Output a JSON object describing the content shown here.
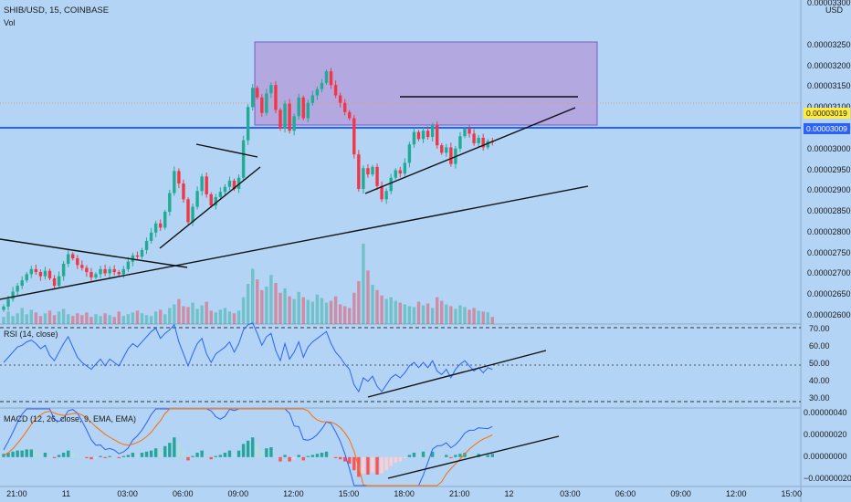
{
  "header": {
    "symbol_line": "SHIB/USD, 15, COINBASE",
    "vol_label": "Vol"
  },
  "price_axis": {
    "currency": "USD",
    "top_tick": "0.00003300",
    "ticks": [
      "0.00003250",
      "0.00003200",
      "0.00003150",
      "0.00003100",
      "0.00003050",
      "0.00003000",
      "0.00002950",
      "0.00002900",
      "0.00002850",
      "0.00002800",
      "0.00002750",
      "0.00002700",
      "0.00002650",
      "0.00002600"
    ],
    "last_price": "0.00003019",
    "hline_price": "0.00003009"
  },
  "rsi": {
    "label": "RSI (14, close)",
    "ticks": [
      "70.00",
      "60.00",
      "50.00",
      "40.00",
      "30.00"
    ]
  },
  "macd": {
    "label": "MACD (12, 26, close, 9, EMA, EMA)",
    "ticks": [
      "0.00000040",
      "0.00000020",
      "0.00000000",
      "−0.00000020"
    ]
  },
  "time_axis": {
    "ticks": [
      "21:00",
      "11",
      "03:00",
      "06:00",
      "09:00",
      "12:00",
      "15:00",
      "18:00",
      "21:00",
      "12",
      "03:00",
      "06:00",
      "09:00",
      "12:00",
      "15:00"
    ]
  },
  "colors": {
    "up": "#22ab94",
    "down": "#f23645",
    "rsi_line": "#2962ff",
    "macd_line": "#2962ff",
    "signal_line": "#ff6d00",
    "box_fill": "#b39ddb",
    "hline": "#2962ff",
    "background": "#b3d4f5"
  },
  "chart_data": {
    "type": "candlestick",
    "interval_minutes": 15,
    "x_start": "10 21:00",
    "price_range": [
      2.58e-05,
      3.32e-05
    ],
    "close": [
      2.622e-05,
      2.64e-05,
      2.658e-05,
      2.672e-05,
      2.685e-05,
      2.7e-05,
      2.712e-05,
      2.705e-05,
      2.695e-05,
      2.708e-05,
      2.69e-05,
      2.672e-05,
      2.695e-05,
      2.725e-05,
      2.748e-05,
      2.738e-05,
      2.722e-05,
      2.715e-05,
      2.705e-05,
      2.692e-05,
      2.7e-05,
      2.712e-05,
      2.702e-05,
      2.712e-05,
      2.705e-05,
      2.7e-05,
      2.712e-05,
      2.73e-05,
      2.745e-05,
      2.742e-05,
      2.758e-05,
      2.78e-05,
      2.8e-05,
      2.822e-05,
      2.812e-05,
      2.85e-05,
      2.895e-05,
      2.948e-05,
      2.918e-05,
      2.88e-05,
      2.825e-05,
      2.862e-05,
      2.9e-05,
      2.935e-05,
      2.892e-05,
      2.865e-05,
      2.885e-05,
      2.898e-05,
      2.91e-05,
      2.925e-05,
      2.905e-05,
      2.932e-05,
      3.022e-05,
      3.102e-05,
      3.148e-05,
      3.125e-05,
      3.088e-05,
      3.135e-05,
      3.155e-05,
      3.095e-05,
      3.05e-05,
      3.11e-05,
      3.045e-05,
      3.08e-05,
      3.125e-05,
      3.075e-05,
      3.112e-05,
      3.13e-05,
      3.145e-05,
      3.16e-05,
      3.188e-05,
      3.155e-05,
      3.13e-05,
      3.112e-05,
      3.09e-05,
      3.075e-05,
      2.988e-05,
      2.905e-05,
      2.955e-05,
      2.94e-05,
      2.958e-05,
      2.912e-05,
      2.88e-05,
      2.9e-05,
      2.932e-05,
      2.95e-05,
      2.942e-05,
      2.968e-05,
      3.012e-05,
      3.042e-05,
      3.025e-05,
      3.045e-05,
      3.03e-05,
      3.058e-05,
      3.01e-05,
      2.992e-05,
      3.005e-05,
      2.965e-05,
      3.002e-05,
      3.032e-05,
      3.05e-05,
      3.038e-05,
      3.015e-05,
      3.028e-05,
      3.005e-05,
      3.02e-05,
      3.019e-05
    ],
    "volume": [
      8,
      14,
      9,
      12,
      18,
      11,
      16,
      13,
      9,
      12,
      15,
      10,
      14,
      17,
      11,
      9,
      12,
      10,
      13,
      8,
      11,
      9,
      12,
      10,
      8,
      14,
      9,
      11,
      13,
      15,
      12,
      10,
      9,
      14,
      16,
      11,
      18,
      22,
      28,
      20,
      19,
      24,
      17,
      21,
      25,
      15,
      13,
      16,
      18,
      14,
      12,
      15,
      30,
      45,
      62,
      50,
      38,
      42,
      55,
      46,
      35,
      40,
      31,
      28,
      36,
      30,
      27,
      25,
      33,
      29,
      24,
      26,
      31,
      22,
      20,
      18,
      35,
      48,
      90,
      60,
      44,
      38,
      32,
      28,
      30,
      26,
      24,
      22,
      20,
      19,
      25,
      21,
      23,
      18,
      30,
      26,
      22,
      20,
      17,
      21,
      19,
      16,
      18,
      15,
      14,
      13,
      8
    ],
    "rsi_series": [
      51,
      54,
      57,
      60,
      61,
      63,
      64,
      62,
      59,
      61,
      55,
      52,
      57,
      62,
      66,
      60,
      54,
      51,
      49,
      47,
      50,
      53,
      49,
      53,
      51,
      49,
      54,
      59,
      62,
      60,
      63,
      66,
      69,
      71,
      65,
      68,
      70,
      73,
      63,
      56,
      49,
      56,
      62,
      65,
      56,
      51,
      56,
      58,
      60,
      63,
      57,
      62,
      70,
      73,
      74,
      68,
      61,
      66,
      68,
      58,
      52,
      62,
      53,
      57,
      63,
      54,
      60,
      63,
      65,
      67,
      69,
      62,
      57,
      54,
      50,
      47,
      38,
      34,
      42,
      40,
      43,
      37,
      34,
      38,
      42,
      44,
      42,
      45,
      49,
      51,
      48,
      51,
      48,
      52,
      46,
      44,
      47,
      42,
      47,
      50,
      52,
      49,
      46,
      48,
      45,
      48,
      47
    ],
    "rsi_range": [
      25,
      75
    ],
    "macd_histogram": [
      3e-08,
      4e-08,
      5e-08,
      6e-08,
      6e-08,
      7e-08,
      7e-08,
      5e-08,
      3e-08,
      4e-08,
      1e-08,
      -1e-08,
      2e-08,
      4e-08,
      6e-08,
      4e-08,
      2e-08,
      0.0,
      -1e-08,
      -2e-08,
      -1e-08,
      1e-08,
      -1e-08,
      1e-08,
      0.0,
      -1e-08,
      1e-08,
      2e-08,
      4e-08,
      3e-08,
      4e-08,
      5e-08,
      6e-08,
      8e-08,
      6e-08,
      1e-07,
      1.3e-07,
      1.8e-07,
      1.2e-07,
      6e-08,
      -3e-08,
      1e-08,
      4e-08,
      6e-08,
      1e-08,
      -2e-08,
      1e-08,
      2e-08,
      4e-08,
      6e-08,
      3e-08,
      6e-08,
      1.2e-07,
      1.5e-07,
      1.8e-07,
      1.2e-07,
      6e-08,
      8e-08,
      9e-08,
      2e-08,
      -4e-08,
      2e-08,
      -4e-08,
      -2e-08,
      2e-08,
      -3e-08,
      1e-08,
      2e-08,
      3e-08,
      4e-08,
      5e-08,
      2e-08,
      -1e-08,
      -2e-08,
      -4e-08,
      -6e-08,
      -1.2e-07,
      -1.8e-07,
      -1.5e-07,
      -1.6e-07,
      -1.4e-07,
      -1.6e-07,
      -1.5e-07,
      -1.2e-07,
      -8e-08,
      -5e-08,
      -4e-08,
      -1e-08,
      2e-08,
      4e-08,
      3e-08,
      5e-08,
      4e-08,
      5e-08,
      2e-08,
      1e-08,
      2e-08,
      -1e-08,
      2e-08,
      3e-08,
      4e-08,
      3e-08,
      2e-08,
      3e-08,
      2e-08,
      2e-08,
      3e-08
    ],
    "macd_range": [
      -2.6e-07,
      4.4e-07
    ]
  }
}
